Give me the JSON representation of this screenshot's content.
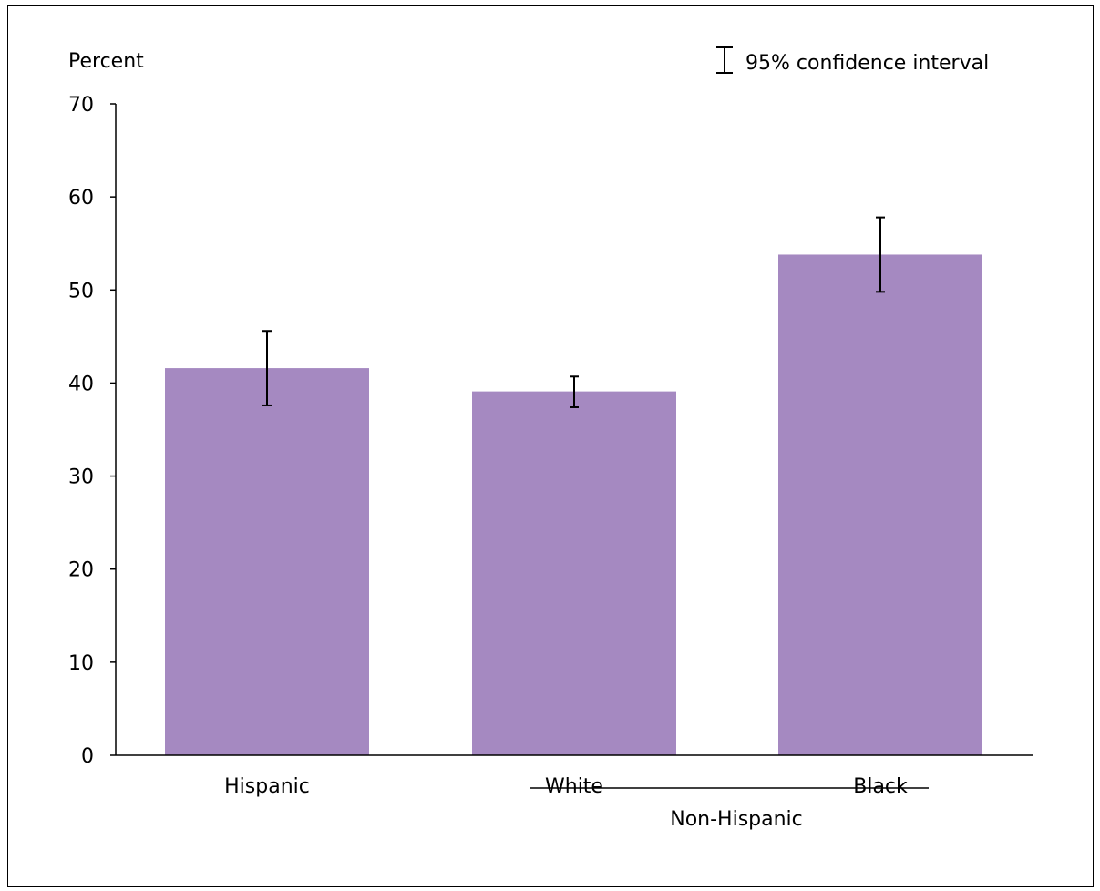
{
  "chart_data": {
    "type": "bar",
    "ylabel": "Percent",
    "ylim": [
      0,
      70
    ],
    "yticks": [
      0,
      10,
      20,
      30,
      40,
      50,
      60,
      70
    ],
    "categories": [
      "Hispanic",
      "White",
      "Black"
    ],
    "group_label": "Non-Hispanic",
    "values": [
      41.6,
      39.1,
      53.8
    ],
    "ci_lower": [
      37.6,
      37.4,
      49.8
    ],
    "ci_upper": [
      45.6,
      40.7,
      57.8
    ],
    "legend": {
      "label": "95% confidence interval",
      "placement": "top-right"
    },
    "bar_color": "#a589c1",
    "grid": false
  }
}
